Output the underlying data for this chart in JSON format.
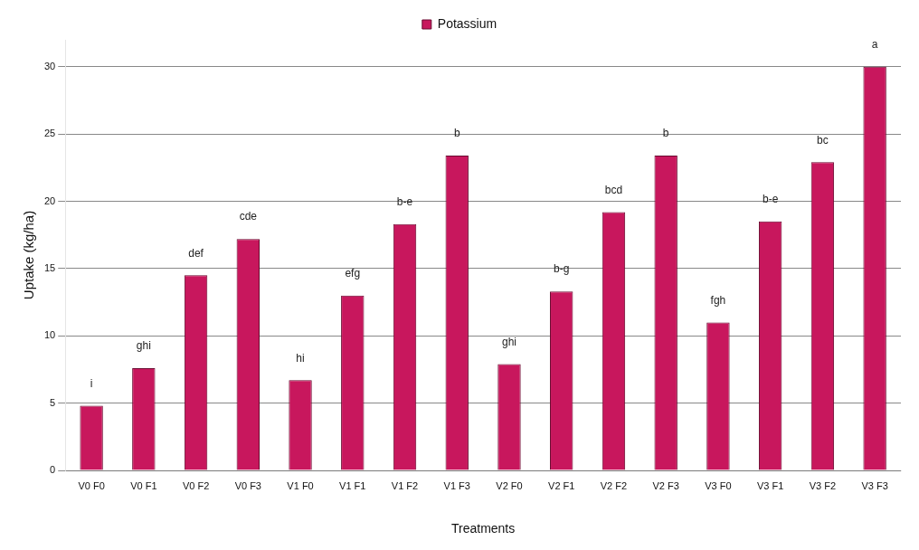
{
  "chart_data": {
    "type": "bar",
    "xlabel": "Treatments",
    "ylabel": "Uptake (kg/ha)",
    "categories": [
      "V0 F0",
      "V0 F1",
      "V0 F2",
      "V0 F3",
      "V1 F0",
      "V1 F1",
      "V1 F2",
      "V1 F3",
      "V2 F0",
      "V2 F1",
      "V2 F2",
      "V2 F3",
      "V3 F0",
      "V3 F1",
      "V3 F2",
      "V3 F3"
    ],
    "series": [
      {
        "name": "Potassium",
        "color": "#c8175d",
        "values": [
          4.8,
          7.6,
          14.5,
          17.2,
          6.7,
          13,
          18.3,
          23.4,
          7.9,
          13.3,
          19.2,
          23.4,
          11,
          18.5,
          22.9,
          30
        ],
        "value_labels": [
          "i",
          "ghi",
          "def",
          "cde",
          "hi",
          "efg",
          "b-e",
          "b",
          "ghi",
          "b-g",
          "bcd",
          "b",
          "fgh",
          "b-e",
          "bc",
          "a"
        ]
      }
    ],
    "ylim": [
      0,
      32
    ],
    "yticks": [
      0,
      5,
      10,
      15,
      20,
      25,
      30
    ],
    "grid": "y",
    "legend": "top"
  }
}
